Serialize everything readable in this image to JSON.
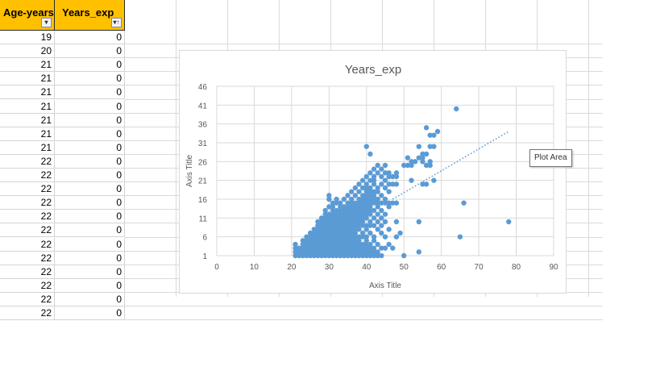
{
  "sheet": {
    "headers": [
      {
        "label": "Age-years",
        "filter_icon": "dropdown-arrow"
      },
      {
        "label": "Years_exp",
        "filter_icon": "sort-filter-arrow"
      }
    ],
    "rows": [
      {
        "age": "19",
        "years_exp": "0"
      },
      {
        "age": "20",
        "years_exp": "0"
      },
      {
        "age": "21",
        "years_exp": "0"
      },
      {
        "age": "21",
        "years_exp": "0"
      },
      {
        "age": "21",
        "years_exp": "0"
      },
      {
        "age": "21",
        "years_exp": "0"
      },
      {
        "age": "21",
        "years_exp": "0"
      },
      {
        "age": "21",
        "years_exp": "0"
      },
      {
        "age": "21",
        "years_exp": "0"
      },
      {
        "age": "22",
        "years_exp": "0"
      },
      {
        "age": "22",
        "years_exp": "0"
      },
      {
        "age": "22",
        "years_exp": "0"
      },
      {
        "age": "22",
        "years_exp": "0"
      },
      {
        "age": "22",
        "years_exp": "0"
      },
      {
        "age": "22",
        "years_exp": "0"
      },
      {
        "age": "22",
        "years_exp": "0"
      },
      {
        "age": "22",
        "years_exp": "0"
      },
      {
        "age": "22",
        "years_exp": "0"
      },
      {
        "age": "22",
        "years_exp": "0"
      },
      {
        "age": "22",
        "years_exp": "0"
      },
      {
        "age": "22",
        "years_exp": "0"
      }
    ],
    "header_color": "#ffc000"
  },
  "tooltip": {
    "text": "Plot Area"
  },
  "chart_data": {
    "type": "scatter",
    "title": "Years_exp",
    "xlabel": "Axis Title",
    "ylabel": "Axis Title",
    "xlim": [
      0,
      90
    ],
    "ylim": [
      1,
      46
    ],
    "xticks": [
      "0",
      "10",
      "20",
      "30",
      "40",
      "50",
      "60",
      "70",
      "80",
      "90"
    ],
    "yticks": [
      "1",
      "6",
      "11",
      "16",
      "21",
      "26",
      "31",
      "36",
      "41",
      "46"
    ],
    "grid": true,
    "legend": "none",
    "marker_color": "#5b9bd5",
    "trendline": {
      "style": "dotted",
      "x": [
        47,
        78
      ],
      "y": [
        16,
        34
      ]
    },
    "points": [
      [
        21,
        1
      ],
      [
        22,
        1
      ],
      [
        23,
        1
      ],
      [
        24,
        1
      ],
      [
        25,
        1
      ],
      [
        26,
        1
      ],
      [
        27,
        1
      ],
      [
        28,
        1
      ],
      [
        29,
        1
      ],
      [
        30,
        1
      ],
      [
        31,
        1
      ],
      [
        32,
        1
      ],
      [
        33,
        1
      ],
      [
        34,
        1
      ],
      [
        35,
        1
      ],
      [
        36,
        1
      ],
      [
        37,
        1
      ],
      [
        38,
        1
      ],
      [
        39,
        1
      ],
      [
        40,
        1
      ],
      [
        41,
        1
      ],
      [
        42,
        1
      ],
      [
        43,
        1
      ],
      [
        44,
        1
      ],
      [
        50,
        1
      ],
      [
        21,
        2
      ],
      [
        22,
        2
      ],
      [
        23,
        2
      ],
      [
        24,
        2
      ],
      [
        25,
        2
      ],
      [
        26,
        2
      ],
      [
        27,
        2
      ],
      [
        28,
        2
      ],
      [
        29,
        2
      ],
      [
        30,
        2
      ],
      [
        31,
        2
      ],
      [
        32,
        2
      ],
      [
        33,
        2
      ],
      [
        34,
        2
      ],
      [
        35,
        2
      ],
      [
        36,
        2
      ],
      [
        37,
        2
      ],
      [
        38,
        2
      ],
      [
        39,
        2
      ],
      [
        40,
        2
      ],
      [
        41,
        2
      ],
      [
        42,
        2
      ],
      [
        43,
        2
      ],
      [
        54,
        2
      ],
      [
        21,
        3
      ],
      [
        22,
        3
      ],
      [
        23,
        3
      ],
      [
        24,
        3
      ],
      [
        25,
        3
      ],
      [
        26,
        3
      ],
      [
        27,
        3
      ],
      [
        28,
        3
      ],
      [
        29,
        3
      ],
      [
        30,
        3
      ],
      [
        31,
        3
      ],
      [
        32,
        3
      ],
      [
        33,
        3
      ],
      [
        34,
        3
      ],
      [
        35,
        3
      ],
      [
        36,
        3
      ],
      [
        37,
        3
      ],
      [
        38,
        3
      ],
      [
        39,
        3
      ],
      [
        40,
        3
      ],
      [
        41,
        3
      ],
      [
        42,
        3
      ],
      [
        44,
        3
      ],
      [
        45,
        3
      ],
      [
        47,
        3
      ],
      [
        21,
        4
      ],
      [
        23,
        4
      ],
      [
        24,
        4
      ],
      [
        25,
        4
      ],
      [
        26,
        4
      ],
      [
        27,
        4
      ],
      [
        28,
        4
      ],
      [
        29,
        4
      ],
      [
        30,
        4
      ],
      [
        31,
        4
      ],
      [
        32,
        4
      ],
      [
        33,
        4
      ],
      [
        34,
        4
      ],
      [
        35,
        4
      ],
      [
        36,
        4
      ],
      [
        37,
        4
      ],
      [
        38,
        4
      ],
      [
        39,
        4
      ],
      [
        40,
        4
      ],
      [
        41,
        4
      ],
      [
        43,
        4
      ],
      [
        46,
        4
      ],
      [
        23,
        5
      ],
      [
        24,
        5
      ],
      [
        25,
        5
      ],
      [
        26,
        5
      ],
      [
        27,
        5
      ],
      [
        28,
        5
      ],
      [
        29,
        5
      ],
      [
        30,
        5
      ],
      [
        31,
        5
      ],
      [
        32,
        5
      ],
      [
        33,
        5
      ],
      [
        34,
        5
      ],
      [
        35,
        5
      ],
      [
        36,
        5
      ],
      [
        37,
        5
      ],
      [
        38,
        5
      ],
      [
        40,
        5
      ],
      [
        42,
        5
      ],
      [
        24,
        6
      ],
      [
        25,
        6
      ],
      [
        26,
        6
      ],
      [
        27,
        6
      ],
      [
        28,
        6
      ],
      [
        29,
        6
      ],
      [
        30,
        6
      ],
      [
        31,
        6
      ],
      [
        32,
        6
      ],
      [
        33,
        6
      ],
      [
        34,
        6
      ],
      [
        35,
        6
      ],
      [
        36,
        6
      ],
      [
        37,
        6
      ],
      [
        38,
        6
      ],
      [
        39,
        6
      ],
      [
        40,
        6
      ],
      [
        42,
        6
      ],
      [
        45,
        6
      ],
      [
        48,
        6
      ],
      [
        65,
        6
      ],
      [
        25,
        7
      ],
      [
        26,
        7
      ],
      [
        27,
        7
      ],
      [
        28,
        7
      ],
      [
        29,
        7
      ],
      [
        30,
        7
      ],
      [
        31,
        7
      ],
      [
        32,
        7
      ],
      [
        33,
        7
      ],
      [
        34,
        7
      ],
      [
        35,
        7
      ],
      [
        36,
        7
      ],
      [
        37,
        7
      ],
      [
        39,
        7
      ],
      [
        41,
        7
      ],
      [
        44,
        7
      ],
      [
        49,
        7
      ],
      [
        26,
        8
      ],
      [
        27,
        8
      ],
      [
        28,
        8
      ],
      [
        29,
        8
      ],
      [
        30,
        8
      ],
      [
        31,
        8
      ],
      [
        32,
        8
      ],
      [
        33,
        8
      ],
      [
        34,
        8
      ],
      [
        35,
        8
      ],
      [
        36,
        8
      ],
      [
        37,
        8
      ],
      [
        38,
        8
      ],
      [
        40,
        8
      ],
      [
        43,
        8
      ],
      [
        46,
        8
      ],
      [
        27,
        9
      ],
      [
        28,
        9
      ],
      [
        29,
        9
      ],
      [
        30,
        9
      ],
      [
        31,
        9
      ],
      [
        32,
        9
      ],
      [
        33,
        9
      ],
      [
        34,
        9
      ],
      [
        35,
        9
      ],
      [
        36,
        9
      ],
      [
        37,
        9
      ],
      [
        38,
        9
      ],
      [
        39,
        9
      ],
      [
        40,
        9
      ],
      [
        41,
        9
      ],
      [
        42,
        9
      ],
      [
        44,
        9
      ],
      [
        27,
        10
      ],
      [
        28,
        10
      ],
      [
        29,
        10
      ],
      [
        30,
        10
      ],
      [
        31,
        10
      ],
      [
        32,
        10
      ],
      [
        33,
        10
      ],
      [
        34,
        10
      ],
      [
        35,
        10
      ],
      [
        36,
        10
      ],
      [
        37,
        10
      ],
      [
        38,
        10
      ],
      [
        39,
        10
      ],
      [
        41,
        10
      ],
      [
        43,
        10
      ],
      [
        45,
        10
      ],
      [
        48,
        10
      ],
      [
        54,
        10
      ],
      [
        78,
        10
      ],
      [
        28,
        11
      ],
      [
        29,
        11
      ],
      [
        30,
        11
      ],
      [
        31,
        11
      ],
      [
        32,
        11
      ],
      [
        33,
        11
      ],
      [
        34,
        11
      ],
      [
        35,
        11
      ],
      [
        36,
        11
      ],
      [
        37,
        11
      ],
      [
        38,
        11
      ],
      [
        39,
        11
      ],
      [
        40,
        11
      ],
      [
        42,
        11
      ],
      [
        44,
        11
      ],
      [
        29,
        12
      ],
      [
        30,
        12
      ],
      [
        31,
        12
      ],
      [
        32,
        12
      ],
      [
        33,
        12
      ],
      [
        34,
        12
      ],
      [
        35,
        12
      ],
      [
        36,
        12
      ],
      [
        37,
        12
      ],
      [
        38,
        12
      ],
      [
        39,
        12
      ],
      [
        40,
        12
      ],
      [
        41,
        12
      ],
      [
        43,
        12
      ],
      [
        45,
        12
      ],
      [
        29,
        13
      ],
      [
        31,
        13
      ],
      [
        32,
        13
      ],
      [
        33,
        13
      ],
      [
        34,
        13
      ],
      [
        35,
        13
      ],
      [
        36,
        13
      ],
      [
        37,
        13
      ],
      [
        38,
        13
      ],
      [
        39,
        13
      ],
      [
        40,
        13
      ],
      [
        41,
        13
      ],
      [
        42,
        13
      ],
      [
        44,
        13
      ],
      [
        30,
        14
      ],
      [
        31,
        14
      ],
      [
        33,
        14
      ],
      [
        34,
        14
      ],
      [
        35,
        14
      ],
      [
        36,
        14
      ],
      [
        37,
        14
      ],
      [
        38,
        14
      ],
      [
        39,
        14
      ],
      [
        40,
        14
      ],
      [
        41,
        14
      ],
      [
        43,
        14
      ],
      [
        46,
        14
      ],
      [
        31,
        15
      ],
      [
        32,
        15
      ],
      [
        33,
        15
      ],
      [
        35,
        15
      ],
      [
        36,
        15
      ],
      [
        37,
        15
      ],
      [
        38,
        15
      ],
      [
        39,
        15
      ],
      [
        40,
        15
      ],
      [
        41,
        15
      ],
      [
        42,
        15
      ],
      [
        43,
        15
      ],
      [
        44,
        15
      ],
      [
        45,
        15
      ],
      [
        46,
        15
      ],
      [
        47,
        15
      ],
      [
        48,
        15
      ],
      [
        66,
        15
      ],
      [
        30,
        16
      ],
      [
        32,
        16
      ],
      [
        34,
        16
      ],
      [
        36,
        16
      ],
      [
        38,
        16
      ],
      [
        39,
        16
      ],
      [
        40,
        16
      ],
      [
        41,
        16
      ],
      [
        42,
        16
      ],
      [
        43,
        16
      ],
      [
        45,
        16
      ],
      [
        30,
        17
      ],
      [
        35,
        17
      ],
      [
        37,
        17
      ],
      [
        39,
        17
      ],
      [
        40,
        17
      ],
      [
        41,
        17
      ],
      [
        42,
        17
      ],
      [
        44,
        17
      ],
      [
        36,
        18
      ],
      [
        38,
        18
      ],
      [
        40,
        18
      ],
      [
        41,
        18
      ],
      [
        42,
        18
      ],
      [
        43,
        18
      ],
      [
        46,
        18
      ],
      [
        37,
        19
      ],
      [
        39,
        19
      ],
      [
        40,
        19
      ],
      [
        41,
        19
      ],
      [
        43,
        19
      ],
      [
        45,
        19
      ],
      [
        38,
        20
      ],
      [
        40,
        20
      ],
      [
        42,
        20
      ],
      [
        44,
        20
      ],
      [
        46,
        20
      ],
      [
        47,
        20
      ],
      [
        48,
        20
      ],
      [
        55,
        20
      ],
      [
        56,
        20
      ],
      [
        39,
        21
      ],
      [
        41,
        21
      ],
      [
        42,
        21
      ],
      [
        45,
        21
      ],
      [
        52,
        21
      ],
      [
        58,
        21
      ],
      [
        40,
        22
      ],
      [
        42,
        22
      ],
      [
        44,
        22
      ],
      [
        46,
        22
      ],
      [
        47,
        22
      ],
      [
        48,
        22
      ],
      [
        41,
        23
      ],
      [
        43,
        23
      ],
      [
        45,
        23
      ],
      [
        46,
        23
      ],
      [
        48,
        23
      ],
      [
        42,
        24
      ],
      [
        44,
        24
      ],
      [
        43,
        25
      ],
      [
        45,
        25
      ],
      [
        50,
        25
      ],
      [
        51,
        25
      ],
      [
        52,
        25
      ],
      [
        56,
        25
      ],
      [
        57,
        25
      ],
      [
        52,
        26
      ],
      [
        53,
        26
      ],
      [
        55,
        26
      ],
      [
        57,
        26
      ],
      [
        51,
        27
      ],
      [
        54,
        27
      ],
      [
        55,
        27
      ],
      [
        55,
        28
      ],
      [
        56,
        28
      ],
      [
        54,
        30
      ],
      [
        57,
        30
      ],
      [
        58,
        30
      ],
      [
        40,
        30
      ],
      [
        41,
        28
      ],
      [
        57,
        33
      ],
      [
        58,
        33
      ],
      [
        59,
        34
      ],
      [
        56,
        35
      ],
      [
        64,
        40
      ]
    ]
  }
}
